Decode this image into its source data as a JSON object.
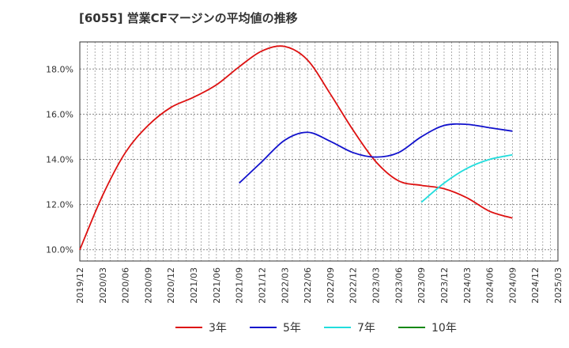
{
  "title": "[6055]  営業CFマージンの平均値の推移",
  "chart_data": {
    "type": "line",
    "title": "[6055]  営業CFマージンの平均値の推移",
    "xlabel": "",
    "ylabel": "",
    "ylim": [
      9.5,
      19.2
    ],
    "yticks": [
      10.0,
      12.0,
      14.0,
      16.0,
      18.0
    ],
    "ytick_labels": [
      "10.0%",
      "12.0%",
      "14.0%",
      "16.0%",
      "18.0%"
    ],
    "xlim": [
      "2019/12",
      "2025/03"
    ],
    "xtick_labels": [
      "2019/12",
      "2020/03",
      "2020/06",
      "2020/09",
      "2020/12",
      "2021/03",
      "2021/06",
      "2021/09",
      "2021/12",
      "2022/03",
      "2022/06",
      "2022/09",
      "2022/12",
      "2023/03",
      "2023/06",
      "2023/09",
      "2023/12",
      "2024/03",
      "2024/06",
      "2024/09",
      "2024/12",
      "2025/03"
    ],
    "grid": true,
    "legend_position": "bottom",
    "series": [
      {
        "name": "3年",
        "color": "#dd1111",
        "x": [
          "2019/12",
          "2020/03",
          "2020/06",
          "2020/09",
          "2020/12",
          "2021/03",
          "2021/06",
          "2021/09",
          "2021/12",
          "2022/03",
          "2022/06",
          "2022/09",
          "2022/12",
          "2023/03",
          "2023/06",
          "2023/09",
          "2023/12",
          "2024/03",
          "2024/06",
          "2024/09"
        ],
        "values": [
          10.0,
          12.4,
          14.3,
          15.5,
          16.3,
          16.75,
          17.3,
          18.1,
          18.8,
          19.0,
          18.4,
          16.9,
          15.3,
          13.9,
          13.05,
          12.85,
          12.7,
          12.3,
          11.7,
          11.4
        ]
      },
      {
        "name": "5年",
        "color": "#1111cc",
        "x": [
          "2021/09",
          "2021/12",
          "2022/03",
          "2022/06",
          "2022/09",
          "2022/12",
          "2023/03",
          "2023/06",
          "2023/09",
          "2023/12",
          "2024/03",
          "2024/06",
          "2024/09"
        ],
        "values": [
          12.95,
          13.9,
          14.85,
          15.2,
          14.8,
          14.3,
          14.1,
          14.3,
          15.0,
          15.5,
          15.55,
          15.4,
          15.25
        ]
      },
      {
        "name": "7年",
        "color": "#22dddd",
        "x": [
          "2023/09",
          "2023/12",
          "2024/03",
          "2024/06",
          "2024/09"
        ],
        "values": [
          12.1,
          12.95,
          13.6,
          14.0,
          14.2
        ]
      },
      {
        "name": "10年",
        "color": "#118811",
        "x": [],
        "values": []
      }
    ]
  }
}
